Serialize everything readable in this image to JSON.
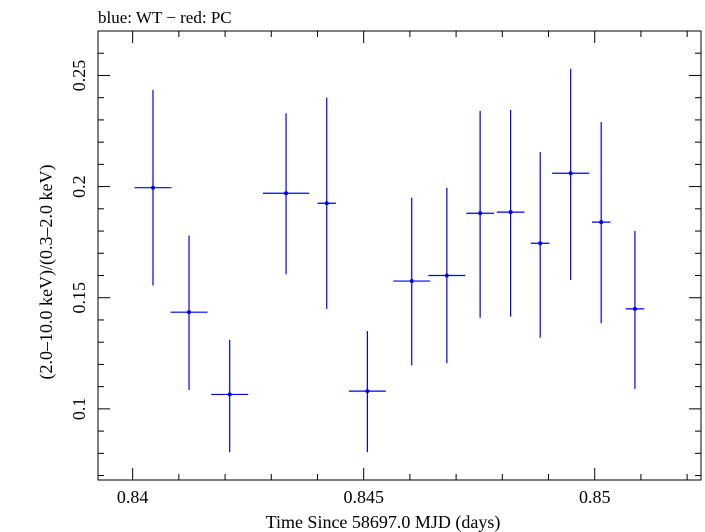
{
  "chart_data": {
    "type": "scatter",
    "title": "blue: WT − red: PC",
    "xlabel": "Time Since 58697.0 MJD (days)",
    "ylabel": "(2.0–10.0 keV)/(0.3–2.0 keV)",
    "xlim": [
      0.83925,
      0.8523
    ],
    "ylim": [
      0.068,
      0.27
    ],
    "x_major_ticks": [
      0.84,
      0.845,
      0.85
    ],
    "x_tick_labels": [
      "0.84",
      "0.845",
      "0.85"
    ],
    "x_minor_step": 0.001,
    "y_major_ticks": [
      0.1,
      0.15,
      0.2,
      0.25
    ],
    "y_tick_labels": [
      "0.1",
      "0.15",
      "0.2",
      "0.25"
    ],
    "y_minor_step": 0.01,
    "grid": false,
    "series": [
      {
        "color": "#0000ee",
        "points": [
          {
            "x": 0.84044,
            "xerr": 0.0004,
            "y": 0.1995,
            "ylo": 0.1555,
            "yhi": 0.2435
          },
          {
            "x": 0.84122,
            "xerr": 0.0004,
            "y": 0.1435,
            "ylo": 0.1085,
            "yhi": 0.178
          },
          {
            "x": 0.8421,
            "xerr": 0.0004,
            "y": 0.1065,
            "ylo": 0.0805,
            "yhi": 0.131
          },
          {
            "x": 0.84332,
            "xerr": 0.0005,
            "y": 0.197,
            "ylo": 0.1605,
            "yhi": 0.233
          },
          {
            "x": 0.8442,
            "xerr": 0.0002,
            "y": 0.1925,
            "ylo": 0.145,
            "yhi": 0.24
          },
          {
            "x": 0.84508,
            "xerr": 0.0004,
            "y": 0.108,
            "ylo": 0.0805,
            "yhi": 0.135
          },
          {
            "x": 0.84604,
            "xerr": 0.0004,
            "y": 0.1575,
            "ylo": 0.1195,
            "yhi": 0.195
          },
          {
            "x": 0.8468,
            "xerr": 0.0004,
            "y": 0.16,
            "ylo": 0.1205,
            "yhi": 0.1995
          },
          {
            "x": 0.84752,
            "xerr": 0.0003,
            "y": 0.188,
            "ylo": 0.141,
            "yhi": 0.234
          },
          {
            "x": 0.84818,
            "xerr": 0.0003,
            "y": 0.1885,
            "ylo": 0.1415,
            "yhi": 0.2345
          },
          {
            "x": 0.84882,
            "xerr": 0.0002,
            "y": 0.1745,
            "ylo": 0.132,
            "yhi": 0.2155
          },
          {
            "x": 0.84948,
            "xerr": 0.0004,
            "y": 0.206,
            "ylo": 0.158,
            "yhi": 0.253
          },
          {
            "x": 0.85014,
            "xerr": 0.0002,
            "y": 0.184,
            "ylo": 0.1385,
            "yhi": 0.229
          },
          {
            "x": 0.85087,
            "xerr": 0.0002,
            "y": 0.145,
            "ylo": 0.109,
            "yhi": 0.18
          }
        ]
      }
    ]
  }
}
